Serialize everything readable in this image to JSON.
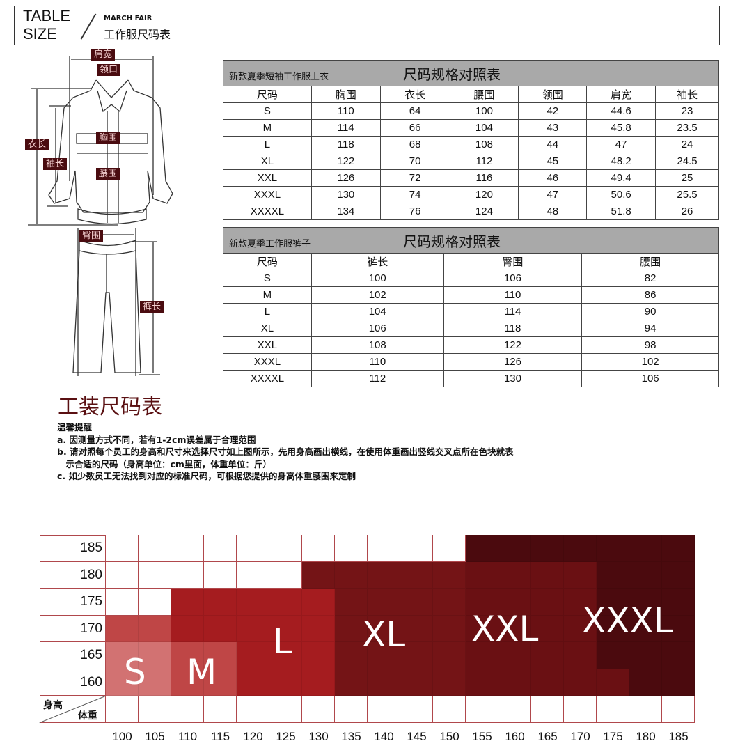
{
  "header": {
    "line1": "TABLE",
    "line2": "SIZE",
    "subtitle_en": "MARCH FAIR",
    "subtitle_cn": "工作服尺码表"
  },
  "diagram": {
    "labels": {
      "shoulder": "肩宽",
      "collar": "领口",
      "length": "衣长",
      "sleeve": "袖长",
      "chest": "胸围",
      "waist": "腰围",
      "hip": "臀围",
      "pants_length": "裤长"
    }
  },
  "top_table": {
    "subtitle": "新款夏季短袖工作服上衣",
    "title": "尺码规格对照表",
    "headers": [
      "尺码",
      "胸围",
      "衣长",
      "腰围",
      "领围",
      "肩宽",
      "袖长"
    ],
    "rows": [
      [
        "S",
        "110",
        "64",
        "100",
        "42",
        "44.6",
        "23"
      ],
      [
        "M",
        "114",
        "66",
        "104",
        "43",
        "45.8",
        "23.5"
      ],
      [
        "L",
        "118",
        "68",
        "108",
        "44",
        "47",
        "24"
      ],
      [
        "XL",
        "122",
        "70",
        "112",
        "45",
        "48.2",
        "24.5"
      ],
      [
        "XXL",
        "126",
        "72",
        "116",
        "46",
        "49.4",
        "25"
      ],
      [
        "XXXL",
        "130",
        "74",
        "120",
        "47",
        "50.6",
        "25.5"
      ],
      [
        "XXXXL",
        "134",
        "76",
        "124",
        "48",
        "51.8",
        "26"
      ]
    ]
  },
  "pants_table": {
    "subtitle": "新款夏季工作服裤子",
    "title": "尺码规格对照表",
    "headers": [
      "尺码",
      "裤长",
      "臀围",
      "腰围"
    ],
    "rows": [
      [
        "S",
        "100",
        "106",
        "82"
      ],
      [
        "M",
        "102",
        "110",
        "86"
      ],
      [
        "L",
        "104",
        "114",
        "90"
      ],
      [
        "XL",
        "106",
        "118",
        "94"
      ],
      [
        "XXL",
        "108",
        "122",
        "98"
      ],
      [
        "XXXL",
        "110",
        "126",
        "102"
      ],
      [
        "XXXXL",
        "112",
        "130",
        "106"
      ]
    ]
  },
  "guide": {
    "title": "工装尺码表",
    "notes_title": "温馨提醒",
    "notes": [
      "a. 因测量方式不同，若有1-2cm误差属于合理范围",
      "b. 请对照每个员工的身高和尺寸来选择尺寸如上图所示，先用身高画出横线，在使用体重画出竖线交叉点所在色块就表",
      "　示合适的尺码（身高单位：cm里面，体重单位：斤）",
      "c. 如少数员工无法找到对应的标准尺码，可根据您提供的身高体重腰围来定制"
    ]
  },
  "size_grid": {
    "height_label": "身高",
    "weight_label": "体重",
    "heights": [
      "185",
      "180",
      "175",
      "170",
      "165",
      "160"
    ],
    "weights": [
      "100",
      "105",
      "110",
      "115",
      "120",
      "125",
      "130",
      "135",
      "140",
      "145",
      "150",
      "155",
      "160",
      "165",
      "170",
      "175",
      "180",
      "185"
    ],
    "map": [
      [
        "",
        "",
        "",
        "",
        "",
        "",
        "",
        "",
        "",
        "",
        "",
        "XXXL",
        "XXXL",
        "XXXL",
        "XXXL",
        "XXXL",
        "XXXL",
        "XXXL"
      ],
      [
        "",
        "",
        "",
        "",
        "",
        "",
        "XL",
        "XL",
        "XL",
        "XL",
        "XL",
        "XXL",
        "XXL",
        "XXL",
        "XXL",
        "XXXL",
        "XXXL",
        "XXXL"
      ],
      [
        "",
        "",
        "L",
        "L",
        "L",
        "L",
        "L",
        "XL",
        "XL",
        "XL",
        "XL",
        "XXL",
        "XXL",
        "XXL",
        "XXL",
        "XXXL",
        "XXXL",
        "XXXL"
      ],
      [
        "M",
        "M",
        "L",
        "L",
        "L",
        "L",
        "L",
        "XL",
        "XL",
        "XL",
        "XL",
        "XXL",
        "XXL",
        "XXL",
        "XXL",
        "XXXL",
        "XXXL",
        "XXXL"
      ],
      [
        "S",
        "S",
        "M",
        "M",
        "L",
        "L",
        "L",
        "XL",
        "XL",
        "XL",
        "XL",
        "XXL",
        "XXL",
        "XXL",
        "XXL",
        "XXXL",
        "XXXL",
        "XXXL"
      ],
      [
        "S",
        "S",
        "M",
        "M",
        "L",
        "L",
        "L",
        "XL",
        "XL",
        "XL",
        "XL",
        "XXL",
        "XXL",
        "XXL",
        "XXL",
        "XXL",
        "XXXL",
        "XXXL"
      ]
    ],
    "sizes": [
      "S",
      "M",
      "L",
      "XL",
      "XXL",
      "XXXL"
    ],
    "colors": {
      "S": "#d27272",
      "M": "#bf4646",
      "L": "#a51c1f",
      "XL": "#741416",
      "XXL": "#6a1013",
      "XXXL": "#4b0a0e"
    }
  }
}
